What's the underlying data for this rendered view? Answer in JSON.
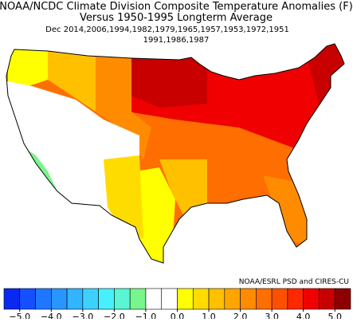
{
  "header": {
    "title": "NOAA/NCDC Climate Division Composite Temperature Anomalies (F)",
    "subtitle": "Versus 1950-1995 Longterm Average",
    "composite_line1": "Dec   2014,2006,1994,1982,1979,1965,1957,1953,1972,1951",
    "composite_line2": "1991,1986,1987"
  },
  "credit": "NOAA/ESRL PSD and CIRES-CU",
  "colorbar": {
    "lim": [
      -5.5,
      5.5
    ],
    "colors": [
      "#0a28f0",
      "#1450ff",
      "#1e78ff",
      "#2896ff",
      "#32b4ff",
      "#3cd2ff",
      "#46f0ff",
      "#5af5d2",
      "#78f58c",
      "#ffffff",
      "#ffffff",
      "#ffff00",
      "#ffdc00",
      "#ffc000",
      "#ffa500",
      "#ff8c00",
      "#ff6e00",
      "#ff5000",
      "#ff2800",
      "#f00000",
      "#c80000",
      "#8c0000"
    ],
    "ticks": [
      {
        "value": -5,
        "label": "−5.0"
      },
      {
        "value": -4,
        "label": "−4.0"
      },
      {
        "value": -3,
        "label": "−3.0"
      },
      {
        "value": -2,
        "label": "−2.0"
      },
      {
        "value": -1,
        "label": "−1.0"
      },
      {
        "value": 0,
        "label": "0.0"
      },
      {
        "value": 1,
        "label": "1.0"
      },
      {
        "value": 2,
        "label": "2.0"
      },
      {
        "value": 3,
        "label": "3.0"
      },
      {
        "value": 4,
        "label": "4.0"
      },
      {
        "value": 5,
        "label": "5.0"
      }
    ]
  }
}
